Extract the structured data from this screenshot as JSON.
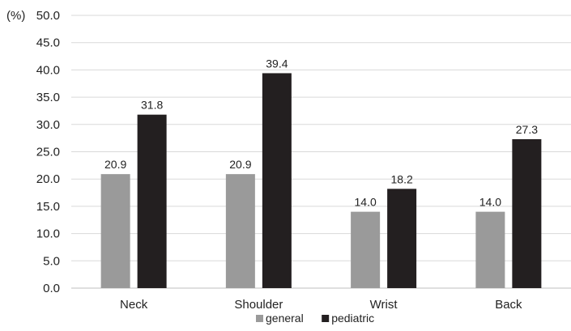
{
  "chart_data": {
    "type": "bar",
    "ylabel": "(%)",
    "ylim": [
      0,
      50
    ],
    "ytick_step": 5,
    "ytick_labels": [
      "0.0",
      "5.0",
      "10.0",
      "15.0",
      "20.0",
      "25.0",
      "30.0",
      "35.0",
      "40.0",
      "45.0",
      "50.0"
    ],
    "categories": [
      "Neck",
      "Shoulder",
      "Wrist",
      "Back"
    ],
    "series": [
      {
        "name": "general",
        "color": "#9a9a9a",
        "values": [
          20.9,
          20.9,
          14.0,
          14.0
        ]
      },
      {
        "name": "pediatric",
        "color": "#231f20",
        "values": [
          31.8,
          39.4,
          18.2,
          27.3
        ]
      }
    ],
    "grid": true,
    "legend": "bottom-center"
  }
}
